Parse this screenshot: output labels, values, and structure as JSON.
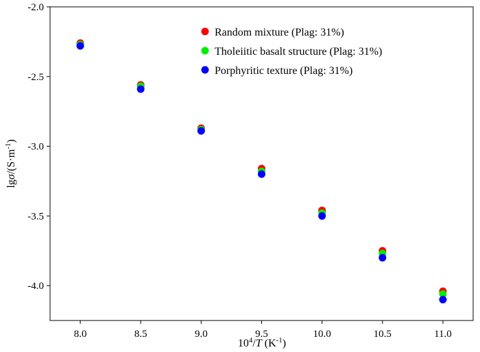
{
  "chart_data": {
    "type": "scatter",
    "xlim": [
      7.75,
      11.25
    ],
    "ylim": [
      -4.25,
      -2.0
    ],
    "xticks": [
      8.0,
      8.5,
      9.0,
      9.5,
      10.0,
      10.5,
      11.0
    ],
    "yticks": [
      -2.0,
      -2.5,
      -3.0,
      -3.5,
      -4.0
    ],
    "xtick_labels": [
      "8.0",
      "8.5",
      "9.0",
      "9.5",
      "10.0",
      "10.5",
      "11.0"
    ],
    "ytick_labels": [
      "-2.0",
      "-2.5",
      "-3.0",
      "-3.5",
      "-4.0"
    ],
    "xlabel": {
      "base": "10",
      "sup": "4",
      "slash": "/",
      "var": "T",
      "unit_open": " (K",
      "unit_sup": "-1",
      "unit_close": ")"
    },
    "ylabel": {
      "lg": "lg",
      "var": "σ",
      "unit_open": "/(S·m",
      "unit_sup": "-1",
      "unit_close": ")"
    },
    "legend_position": "top-right",
    "series": [
      {
        "name": "Random mixture (Plag: 31%)",
        "color": "#ff0000",
        "x": [
          8.0,
          8.5,
          9.0,
          9.5,
          10.0,
          10.5,
          11.0
        ],
        "y": [
          -2.26,
          -2.56,
          -2.87,
          -3.16,
          -3.46,
          -3.75,
          -4.04
        ]
      },
      {
        "name": "Tholeiitic basalt structure (Plag: 31%)",
        "color": "#00ee00",
        "x": [
          8.0,
          8.5,
          9.0,
          9.5,
          10.0,
          10.5,
          11.0
        ],
        "y": [
          -2.27,
          -2.57,
          -2.88,
          -3.18,
          -3.48,
          -3.77,
          -4.06
        ]
      },
      {
        "name": "Porphyritic texture (Plag: 31%)",
        "color": "#0000ff",
        "x": [
          8.0,
          8.5,
          9.0,
          9.5,
          10.0,
          10.5,
          11.0
        ],
        "y": [
          -2.28,
          -2.59,
          -2.89,
          -3.2,
          -3.5,
          -3.8,
          -4.1
        ]
      }
    ]
  }
}
